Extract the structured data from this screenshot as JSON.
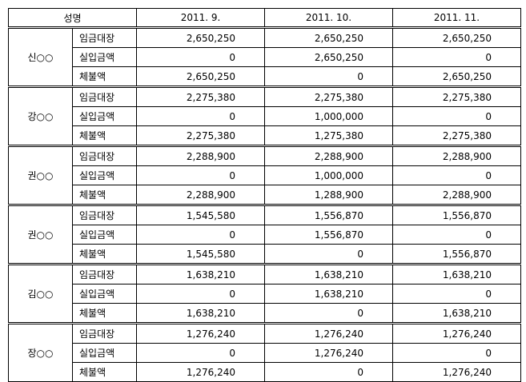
{
  "header": {
    "name": "성명",
    "months": [
      "2011. 9.",
      "2011. 10.",
      "2011. 11."
    ]
  },
  "people": [
    {
      "name": "신○○",
      "rows": [
        {
          "label": "임금대장",
          "values": [
            "2,650,250",
            "2,650,250",
            "2,650,250"
          ]
        },
        {
          "label": "실입금액",
          "values": [
            "0",
            "2,650,250",
            "0"
          ]
        },
        {
          "label": "체불액",
          "values": [
            "2,650,250",
            "0",
            "2,650,250"
          ]
        }
      ]
    },
    {
      "name": "강○○",
      "rows": [
        {
          "label": "임금대장",
          "values": [
            "2,275,380",
            "2,275,380",
            "2,275,380"
          ]
        },
        {
          "label": "실입금액",
          "values": [
            "0",
            "1,000,000",
            "0"
          ]
        },
        {
          "label": "체불액",
          "values": [
            "2,275,380",
            "1,275,380",
            "2,275,380"
          ]
        }
      ]
    },
    {
      "name": "권○○",
      "rows": [
        {
          "label": "임금대장",
          "values": [
            "2,288,900",
            "2,288,900",
            "2,288,900"
          ]
        },
        {
          "label": "실입금액",
          "values": [
            "0",
            "1,000,000",
            "0"
          ]
        },
        {
          "label": "체불액",
          "values": [
            "2,288,900",
            "1,288,900",
            "2,288,900"
          ]
        }
      ]
    },
    {
      "name": "권○○",
      "rows": [
        {
          "label": "임금대장",
          "values": [
            "1,545,580",
            "1,556,870",
            "1,556,870"
          ]
        },
        {
          "label": "실입금액",
          "values": [
            "0",
            "1,556,870",
            "0"
          ]
        },
        {
          "label": "체불액",
          "values": [
            "1,545,580",
            "0",
            "1,556,870"
          ]
        }
      ]
    },
    {
      "name": "김○○",
      "rows": [
        {
          "label": "임금대장",
          "values": [
            "1,638,210",
            "1,638,210",
            "1,638,210"
          ]
        },
        {
          "label": "실입금액",
          "values": [
            "0",
            "1,638,210",
            "0"
          ]
        },
        {
          "label": "체불액",
          "values": [
            "1,638,210",
            "0",
            "1,638,210"
          ]
        }
      ]
    },
    {
      "name": "장○○",
      "rows": [
        {
          "label": "임금대장",
          "values": [
            "1,276,240",
            "1,276,240",
            "1,276,240"
          ]
        },
        {
          "label": "실입금액",
          "values": [
            "0",
            "1,276,240",
            "0"
          ]
        },
        {
          "label": "체불액",
          "values": [
            "1,276,240",
            "0",
            "1,276,240"
          ]
        }
      ]
    }
  ]
}
